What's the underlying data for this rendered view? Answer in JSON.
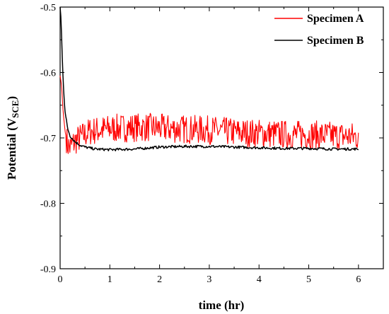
{
  "chart_data": {
    "type": "line",
    "title": "",
    "xlabel": "time (hr)",
    "ylabel": {
      "main": "Potential (V",
      "sub": "SCE",
      "close": ")"
    },
    "xlim": [
      0,
      6.5
    ],
    "ylim": [
      -0.9,
      -0.5
    ],
    "x_ticks": [
      0,
      1,
      2,
      3,
      4,
      5,
      6
    ],
    "y_ticks": [
      -0.5,
      -0.6,
      -0.7,
      -0.8,
      -0.9
    ],
    "grid": false,
    "legend_position": "top-right",
    "series": [
      {
        "name": "Specimen A",
        "color": "#ff0000",
        "x": [
          0.0,
          0.03,
          0.06,
          0.1,
          0.15,
          0.2,
          0.25,
          0.3,
          0.4,
          0.5,
          0.6,
          0.8,
          1.0,
          1.2,
          1.5,
          1.8,
          2.0,
          2.3,
          2.6,
          3.0,
          3.3,
          3.6,
          4.0,
          4.3,
          4.6,
          5.0,
          5.3,
          5.6,
          6.0
        ],
        "y": [
          -0.605,
          -0.62,
          -0.66,
          -0.69,
          -0.71,
          -0.715,
          -0.71,
          -0.705,
          -0.7,
          -0.695,
          -0.69,
          -0.688,
          -0.686,
          -0.685,
          -0.684,
          -0.684,
          -0.685,
          -0.686,
          -0.687,
          -0.688,
          -0.69,
          -0.692,
          -0.693,
          -0.694,
          -0.695,
          -0.695,
          -0.696,
          -0.697,
          -0.698
        ],
        "noise_amplitude": 0.022
      },
      {
        "name": "Specimen B",
        "color": "#000000",
        "x": [
          0.0,
          0.02,
          0.04,
          0.06,
          0.08,
          0.1,
          0.15,
          0.2,
          0.3,
          0.4,
          0.5,
          0.7,
          1.0,
          1.5,
          2.0,
          2.5,
          3.0,
          3.5,
          4.0,
          4.5,
          5.0,
          5.5,
          6.0
        ],
        "y": [
          -0.5,
          -0.52,
          -0.57,
          -0.61,
          -0.64,
          -0.66,
          -0.685,
          -0.697,
          -0.706,
          -0.711,
          -0.714,
          -0.717,
          -0.718,
          -0.717,
          -0.714,
          -0.713,
          -0.713,
          -0.714,
          -0.715,
          -0.716,
          -0.716,
          -0.717,
          -0.717
        ],
        "noise_amplitude": 0.002
      }
    ]
  }
}
